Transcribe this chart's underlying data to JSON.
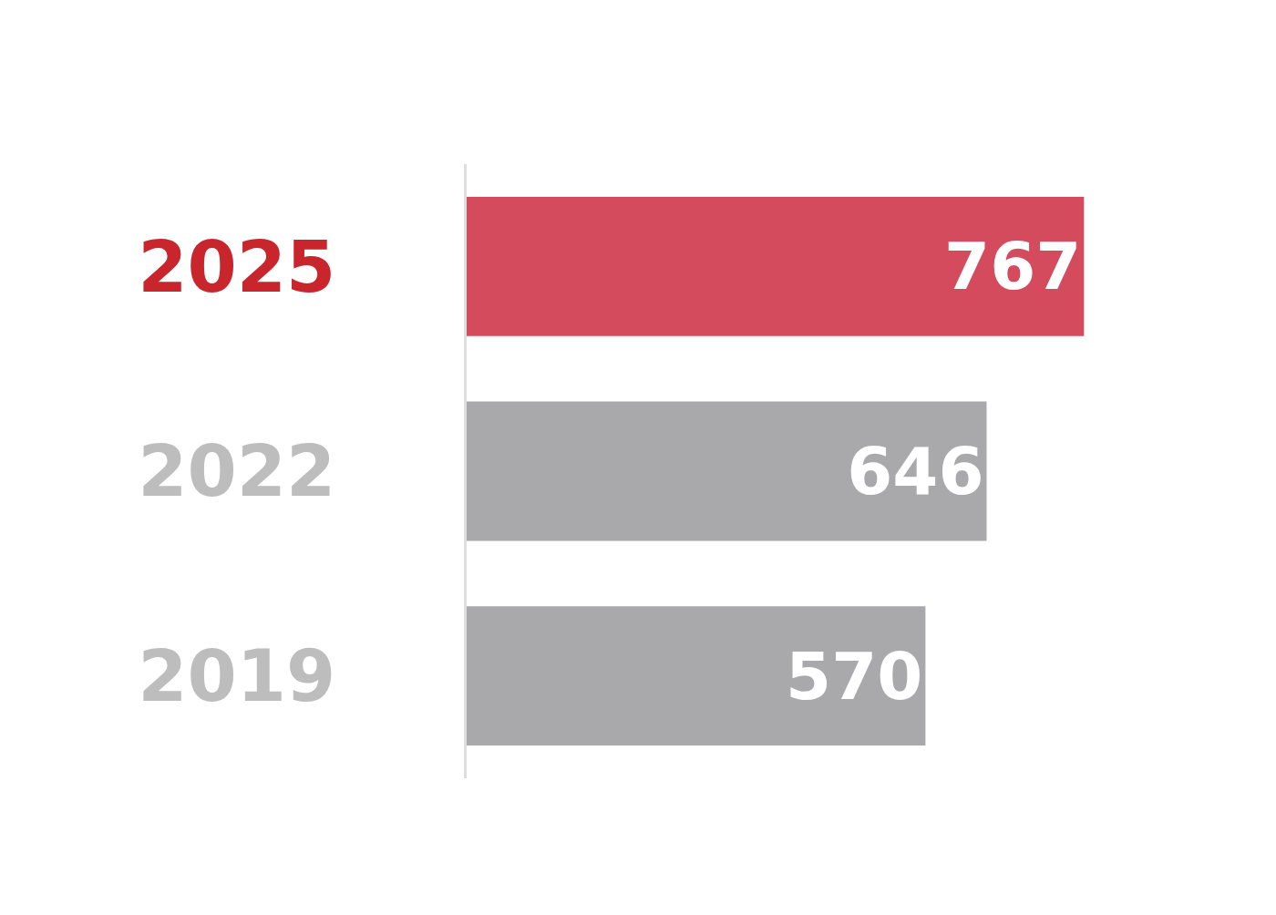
{
  "chart_data": {
    "type": "bar",
    "orientation": "horizontal",
    "categories": [
      "2025",
      "2022",
      "2019"
    ],
    "values": [
      767,
      646,
      570
    ],
    "colors": [
      "#d44b5d",
      "#a9a9ac",
      "#a9a9ac"
    ],
    "tick_labels": "y",
    "data_labels": true,
    "legend": false
  }
}
